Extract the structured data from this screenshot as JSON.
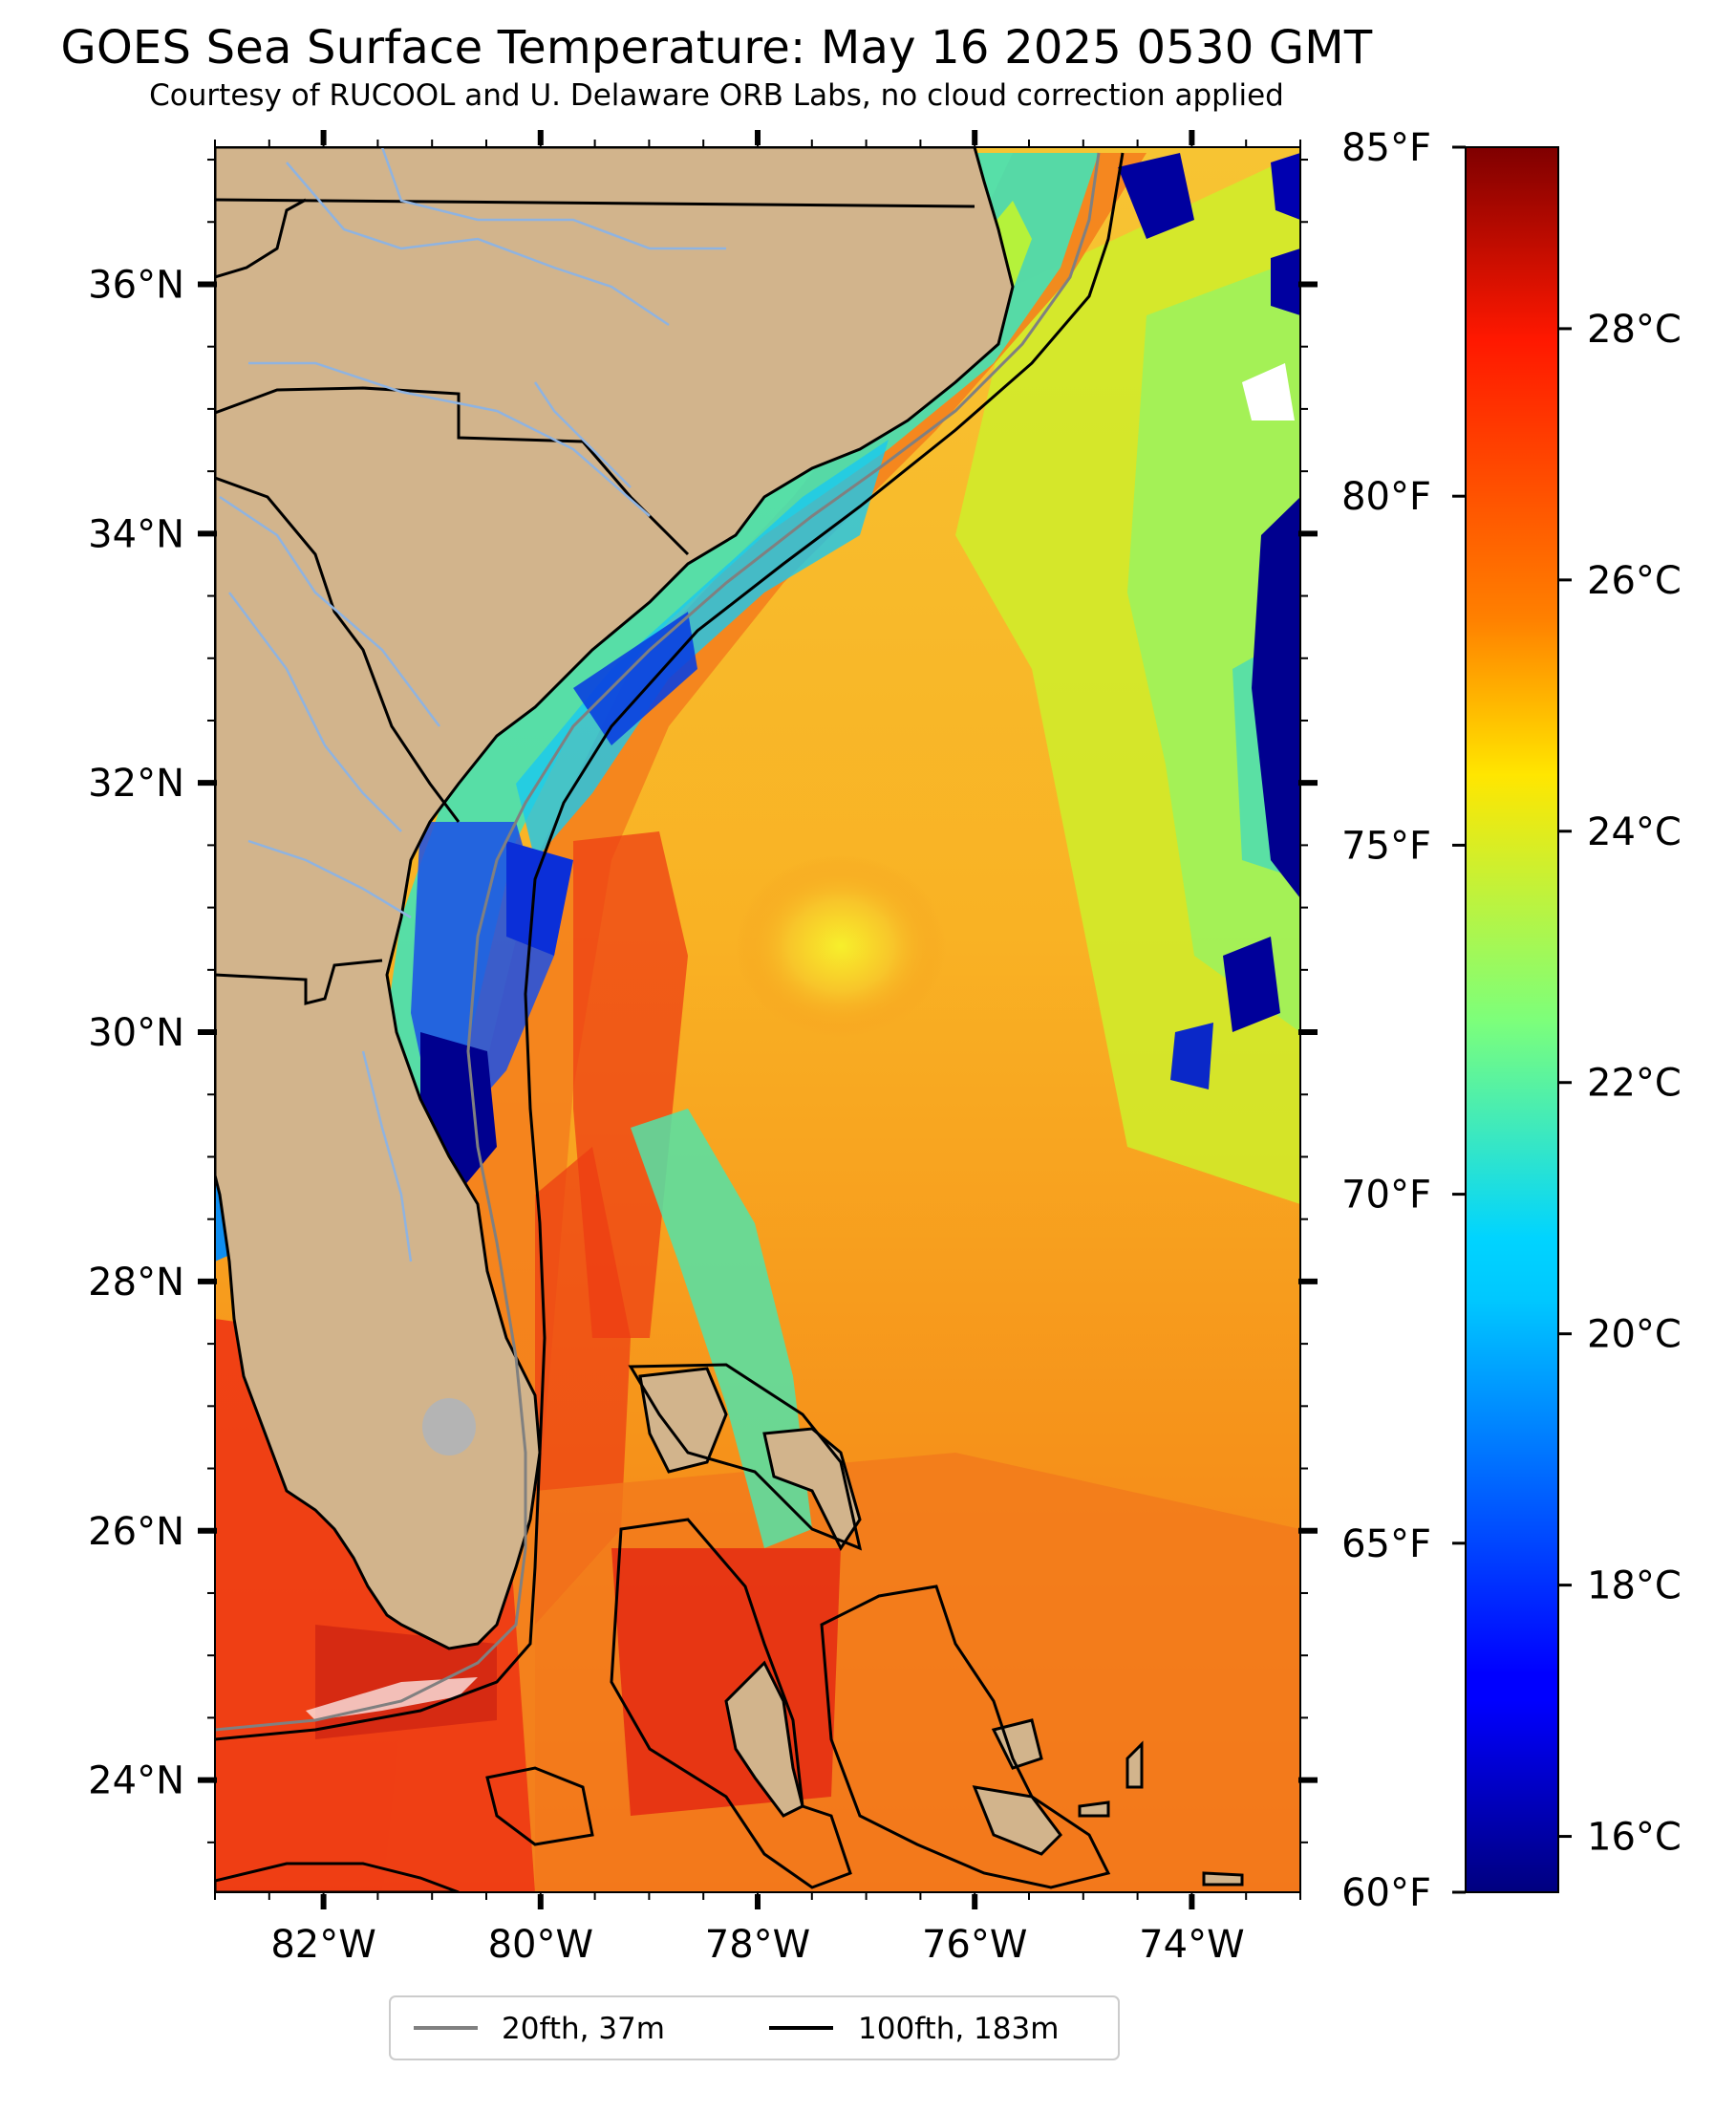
{
  "title": "GOES Sea Surface Temperature: May 16 2025 0530 GMT",
  "subtitle": "Courtesy of RUCOOL and U. Delaware ORB Labs, no cloud correction applied",
  "map": {
    "lon_range": [
      -83,
      -73
    ],
    "lat_range": [
      23.1,
      37.1
    ],
    "lon_ticks": [
      -82,
      -80,
      -78,
      -76,
      -74
    ],
    "lon_tick_labels": [
      "82°W",
      "80°W",
      "78°W",
      "76°W",
      "74°W"
    ],
    "lat_ticks": [
      36,
      34,
      32,
      30,
      28,
      26,
      24
    ],
    "lat_tick_labels": [
      "36°N",
      "34°N",
      "32°N",
      "30°N",
      "28°N",
      "26°N",
      "24°N"
    ],
    "land_color": "#d2b48c",
    "river_color": "#8fb3e0"
  },
  "colorbar": {
    "colormap": "jet",
    "range_f": [
      60,
      85
    ],
    "f_ticks": [
      85,
      80,
      75,
      70,
      65,
      60
    ],
    "f_tick_labels": [
      "85°F",
      "80°F",
      "75°F",
      "70°F",
      "65°F",
      "60°F"
    ],
    "c_ticks": [
      28,
      26,
      24,
      22,
      20,
      18,
      16
    ],
    "c_tick_labels": [
      "28°C",
      "26°C",
      "24°C",
      "22°C",
      "20°C",
      "18°C",
      "16°C"
    ]
  },
  "legend": {
    "items": [
      {
        "label": "20fth, 37m",
        "color": "#808080"
      },
      {
        "label": "100fth, 183m",
        "color": "#000000"
      }
    ]
  }
}
